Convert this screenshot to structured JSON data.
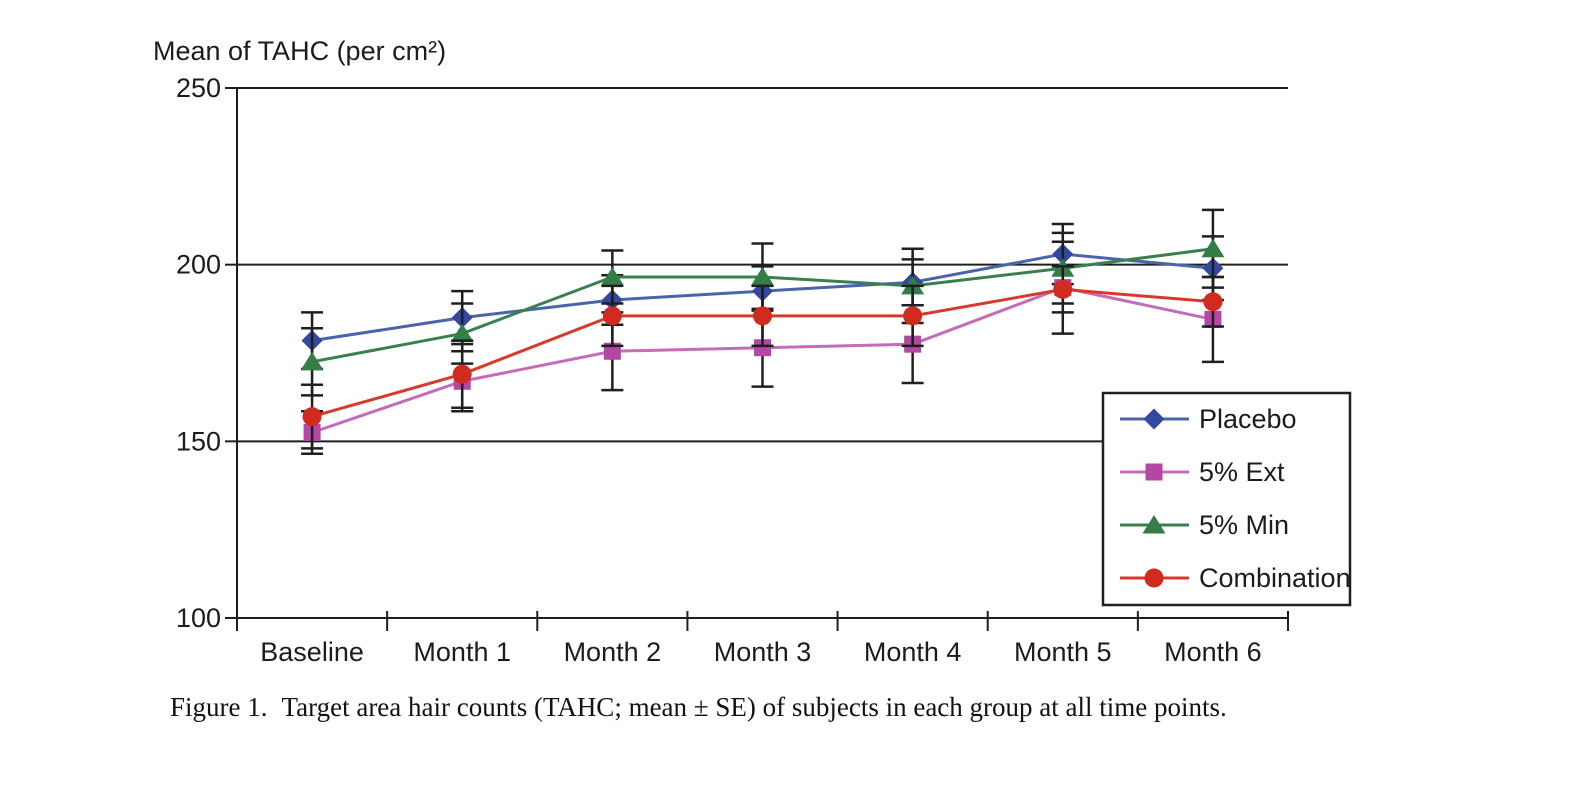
{
  "figure": {
    "caption_label": "Figure 1.",
    "caption_text": "Target area hair counts (TAHC; mean ± SE) of subjects in each group at all time points."
  },
  "chart_data": {
    "type": "line",
    "title": "Mean of TAHC (per cm²)",
    "categories": [
      "Baseline",
      "Month 1",
      "Month 2",
      "Month 3",
      "Month 4",
      "Month 5",
      "Month 6"
    ],
    "yaxis": {
      "min": 100,
      "max": 250,
      "step": 50,
      "ticks": [
        250,
        200,
        150,
        100
      ]
    },
    "grid": "horizontal",
    "error_bars": "mean ± SE",
    "legend_position": "inside-lower-right",
    "ink_color": "#1f1f1f",
    "series": [
      {
        "name": "Placebo",
        "marker": "diamond",
        "line_color": "#4a64ac",
        "marker_color": "#3349a0",
        "values": [
          178.5,
          185,
          190,
          192.5,
          195,
          203,
          199
        ],
        "se": [
          8,
          7.5,
          7,
          7,
          6.5,
          8.5,
          9
        ]
      },
      {
        "name": "5% Ext",
        "marker": "square",
        "line_color": "#c46cb8",
        "marker_color": "#b347a4",
        "values": [
          152.5,
          167,
          175.5,
          176.5,
          177.5,
          193.5,
          184.5
        ],
        "se": [
          6,
          8.5,
          11,
          11,
          11,
          13,
          12
        ]
      },
      {
        "name": "5% Min",
        "marker": "triangle",
        "line_color": "#3a7f4f",
        "marker_color": "#337d46",
        "values": [
          172.5,
          180.5,
          196.5,
          196.5,
          194,
          199,
          204.5
        ],
        "se": [
          9.5,
          8.5,
          7.5,
          9.5,
          10.5,
          10,
          11
        ]
      },
      {
        "name": "Combination",
        "marker": "circle",
        "line_color": "#d63a2c",
        "marker_color": "#d02b1e",
        "values": [
          157,
          169,
          185.5,
          185.5,
          185.5,
          193,
          189.5
        ],
        "se": [
          9,
          9.5,
          8.5,
          8.5,
          8.5,
          6.5,
          7
        ]
      }
    ]
  }
}
